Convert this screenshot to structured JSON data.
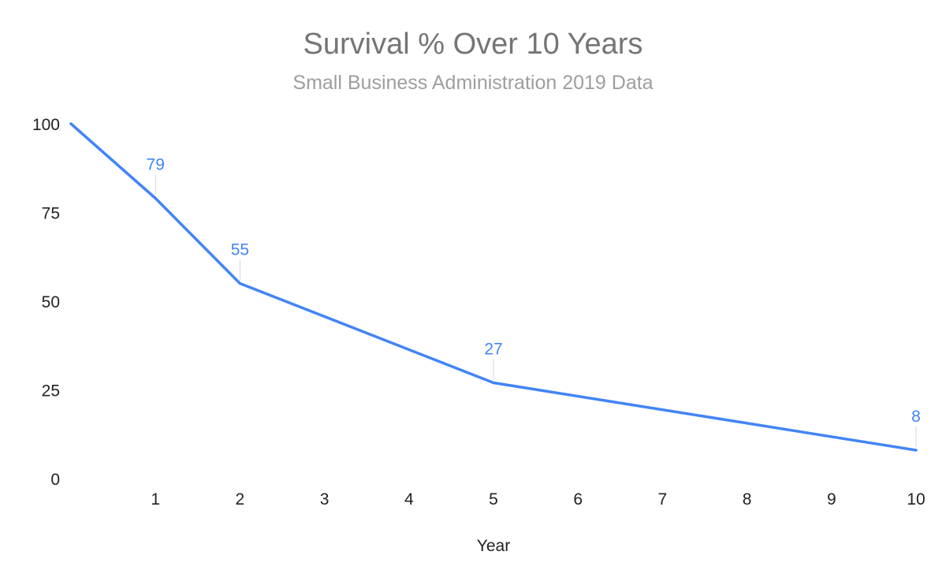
{
  "chart_data": {
    "type": "line",
    "title": "Survival % Over 10 Years",
    "subtitle": "Small Business Administration 2019 Data",
    "xlabel": "Year",
    "ylabel": "",
    "x": [
      0,
      1,
      2,
      5,
      10
    ],
    "y_ticks": [
      "0",
      "25",
      "50",
      "75",
      "100"
    ],
    "x_ticks": [
      "1",
      "2",
      "3",
      "4",
      "5",
      "6",
      "7",
      "8",
      "9",
      "10"
    ],
    "xlim": [
      0,
      10
    ],
    "ylim": [
      0,
      100
    ],
    "grid": false,
    "series": [
      {
        "values": [
          100,
          79,
          55,
          27,
          8
        ],
        "color": "#4285f4",
        "data_labels": [
          "",
          "79",
          "55",
          "27",
          "8"
        ]
      }
    ]
  }
}
